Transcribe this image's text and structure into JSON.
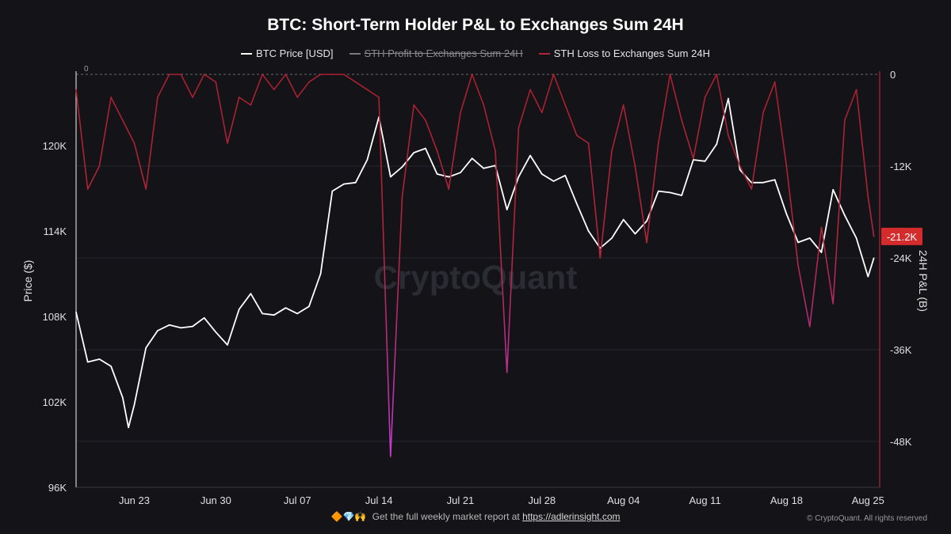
{
  "chart_data": {
    "type": "line",
    "title": "BTC: Short-Term Holder P&L to Exchanges Sum 24H",
    "watermark": "CryptoQuant",
    "y_left": {
      "label": "Price ($)",
      "range": [
        96000,
        125000
      ],
      "ticks": [
        "120K",
        "114K",
        "108K",
        "102K",
        "96K"
      ],
      "tick_values": [
        120000,
        114000,
        108000,
        102000,
        96000
      ]
    },
    "y_right": {
      "label": "24H P&L (B)",
      "range": [
        -54000,
        0
      ],
      "ticks": [
        "0",
        "-12K",
        "-24K",
        "-36K",
        "-48K"
      ],
      "tick_values": [
        0,
        -12000,
        -24000,
        -36000,
        -48000
      ]
    },
    "x": {
      "start": "2025-06-18",
      "end": "2025-08-26",
      "ticks": [
        "Jun 23",
        "Jun 30",
        "Jul 07",
        "Jul 14",
        "Jul 21",
        "Jul 28",
        "Aug 04",
        "Aug 11",
        "Aug 18",
        "Aug 25"
      ],
      "tick_dates": [
        "2025-06-23",
        "2025-06-30",
        "2025-07-07",
        "2025-07-14",
        "2025-07-21",
        "2025-07-28",
        "2025-08-04",
        "2025-08-11",
        "2025-08-18",
        "2025-08-25"
      ]
    },
    "grid": true,
    "current_loss_label": "-21.2K",
    "zero_label": "0",
    "series": [
      {
        "name": "BTC Price [USD]",
        "axis": "left",
        "color": "#ffffff",
        "hidden": false,
        "points": [
          [
            "2025-06-18",
            108300
          ],
          [
            "2025-06-19",
            104800
          ],
          [
            "2025-06-20",
            105000
          ],
          [
            "2025-06-21",
            104500
          ],
          [
            "2025-06-22",
            102300
          ],
          [
            "2025-06-22T12",
            100200
          ],
          [
            "2025-06-23",
            101800
          ],
          [
            "2025-06-24",
            105800
          ],
          [
            "2025-06-25",
            107000
          ],
          [
            "2025-06-26",
            107400
          ],
          [
            "2025-06-27",
            107200
          ],
          [
            "2025-06-28",
            107300
          ],
          [
            "2025-06-29",
            107900
          ],
          [
            "2025-06-30",
            106900
          ],
          [
            "2025-07-01",
            106000
          ],
          [
            "2025-07-02",
            108500
          ],
          [
            "2025-07-03",
            109600
          ],
          [
            "2025-07-04",
            108200
          ],
          [
            "2025-07-05",
            108100
          ],
          [
            "2025-07-06",
            108600
          ],
          [
            "2025-07-07",
            108200
          ],
          [
            "2025-07-08",
            108700
          ],
          [
            "2025-07-09",
            111000
          ],
          [
            "2025-07-10",
            116800
          ],
          [
            "2025-07-11",
            117300
          ],
          [
            "2025-07-12",
            117400
          ],
          [
            "2025-07-13",
            119000
          ],
          [
            "2025-07-14",
            122000
          ],
          [
            "2025-07-15",
            117800
          ],
          [
            "2025-07-16",
            118500
          ],
          [
            "2025-07-17",
            119500
          ],
          [
            "2025-07-18",
            119800
          ],
          [
            "2025-07-19",
            118000
          ],
          [
            "2025-07-20",
            117800
          ],
          [
            "2025-07-21",
            118100
          ],
          [
            "2025-07-22",
            119100
          ],
          [
            "2025-07-23",
            118400
          ],
          [
            "2025-07-24",
            118600
          ],
          [
            "2025-07-25",
            115500
          ],
          [
            "2025-07-26",
            117800
          ],
          [
            "2025-07-27",
            119300
          ],
          [
            "2025-07-28",
            118000
          ],
          [
            "2025-07-29",
            117500
          ],
          [
            "2025-07-30",
            117900
          ],
          [
            "2025-07-31",
            115900
          ],
          [
            "2025-08-01",
            114000
          ],
          [
            "2025-08-02",
            112800
          ],
          [
            "2025-08-03",
            113500
          ],
          [
            "2025-08-04",
            114800
          ],
          [
            "2025-08-05",
            113800
          ],
          [
            "2025-08-06",
            114700
          ],
          [
            "2025-08-07",
            116800
          ],
          [
            "2025-08-08",
            116700
          ],
          [
            "2025-08-09",
            116500
          ],
          [
            "2025-08-10",
            119000
          ],
          [
            "2025-08-11",
            118900
          ],
          [
            "2025-08-12",
            120100
          ],
          [
            "2025-08-13",
            123300
          ],
          [
            "2025-08-14",
            118300
          ],
          [
            "2025-08-15",
            117400
          ],
          [
            "2025-08-16",
            117400
          ],
          [
            "2025-08-17",
            117600
          ],
          [
            "2025-08-18",
            115200
          ],
          [
            "2025-08-19",
            113200
          ],
          [
            "2025-08-20",
            113500
          ],
          [
            "2025-08-21",
            112500
          ],
          [
            "2025-08-22",
            116900
          ],
          [
            "2025-08-23",
            115100
          ],
          [
            "2025-08-24",
            113500
          ],
          [
            "2025-08-25",
            110800
          ],
          [
            "2025-08-25T12",
            112100
          ]
        ]
      },
      {
        "name": "STH Profit to Exchanges Sum 24H",
        "axis": "right",
        "color": "#7a7a7a",
        "hidden": true,
        "points": []
      },
      {
        "name": "STH Loss to Exchanges Sum 24H",
        "axis": "right",
        "color": "#b3263a",
        "color_extreme": "#c03ab8",
        "hidden": false,
        "points": [
          [
            "2025-06-18",
            -2000
          ],
          [
            "2025-06-19",
            -15000
          ],
          [
            "2025-06-20",
            -12000
          ],
          [
            "2025-06-21",
            -3000
          ],
          [
            "2025-06-22",
            -6000
          ],
          [
            "2025-06-23",
            -9000
          ],
          [
            "2025-06-24",
            -15000
          ],
          [
            "2025-06-25",
            -3000
          ],
          [
            "2025-06-26",
            0
          ],
          [
            "2025-06-27",
            0
          ],
          [
            "2025-06-28",
            -3000
          ],
          [
            "2025-06-29",
            0
          ],
          [
            "2025-06-30",
            -1000
          ],
          [
            "2025-07-01",
            -9000
          ],
          [
            "2025-07-02",
            -3000
          ],
          [
            "2025-07-03",
            -4000
          ],
          [
            "2025-07-04",
            0
          ],
          [
            "2025-07-05",
            -2000
          ],
          [
            "2025-07-06",
            0
          ],
          [
            "2025-07-07",
            -3000
          ],
          [
            "2025-07-08",
            -1000
          ],
          [
            "2025-07-09",
            0
          ],
          [
            "2025-07-10",
            0
          ],
          [
            "2025-07-11",
            0
          ],
          [
            "2025-07-12",
            -1000
          ],
          [
            "2025-07-13",
            -2000
          ],
          [
            "2025-07-14",
            -3000
          ],
          [
            "2025-07-15",
            -50000
          ],
          [
            "2025-07-16",
            -16000
          ],
          [
            "2025-07-17",
            -4000
          ],
          [
            "2025-07-18",
            -6000
          ],
          [
            "2025-07-19",
            -10000
          ],
          [
            "2025-07-20",
            -15000
          ],
          [
            "2025-07-21",
            -5000
          ],
          [
            "2025-07-22",
            0
          ],
          [
            "2025-07-23",
            -4000
          ],
          [
            "2025-07-24",
            -10000
          ],
          [
            "2025-07-25",
            -39000
          ],
          [
            "2025-07-26",
            -7000
          ],
          [
            "2025-07-27",
            -2000
          ],
          [
            "2025-07-28",
            -5000
          ],
          [
            "2025-07-29",
            0
          ],
          [
            "2025-07-30",
            -4000
          ],
          [
            "2025-07-31",
            -8000
          ],
          [
            "2025-08-01",
            -9000
          ],
          [
            "2025-08-02",
            -24000
          ],
          [
            "2025-08-03",
            -10000
          ],
          [
            "2025-08-04",
            -4000
          ],
          [
            "2025-08-05",
            -12000
          ],
          [
            "2025-08-06",
            -22000
          ],
          [
            "2025-08-07",
            -9000
          ],
          [
            "2025-08-08",
            0
          ],
          [
            "2025-08-09",
            -6000
          ],
          [
            "2025-08-10",
            -11000
          ],
          [
            "2025-08-11",
            -3000
          ],
          [
            "2025-08-12",
            0
          ],
          [
            "2025-08-13",
            -8000
          ],
          [
            "2025-08-14",
            -12000
          ],
          [
            "2025-08-15",
            -15000
          ],
          [
            "2025-08-16",
            -5000
          ],
          [
            "2025-08-17",
            -1000
          ],
          [
            "2025-08-18",
            -12000
          ],
          [
            "2025-08-19",
            -25000
          ],
          [
            "2025-08-20",
            -33000
          ],
          [
            "2025-08-21",
            -20000
          ],
          [
            "2025-08-22",
            -30000
          ],
          [
            "2025-08-23",
            -6000
          ],
          [
            "2025-08-24",
            -2000
          ],
          [
            "2025-08-25",
            -16000
          ],
          [
            "2025-08-25T12",
            -21200
          ]
        ]
      }
    ]
  },
  "footer": {
    "emoji": "🔶💎🙌",
    "text": "Get the full weekly market report at",
    "link": "https://adlerinsight.com"
  },
  "copyright": "© CryptoQuant. All rights reserved"
}
